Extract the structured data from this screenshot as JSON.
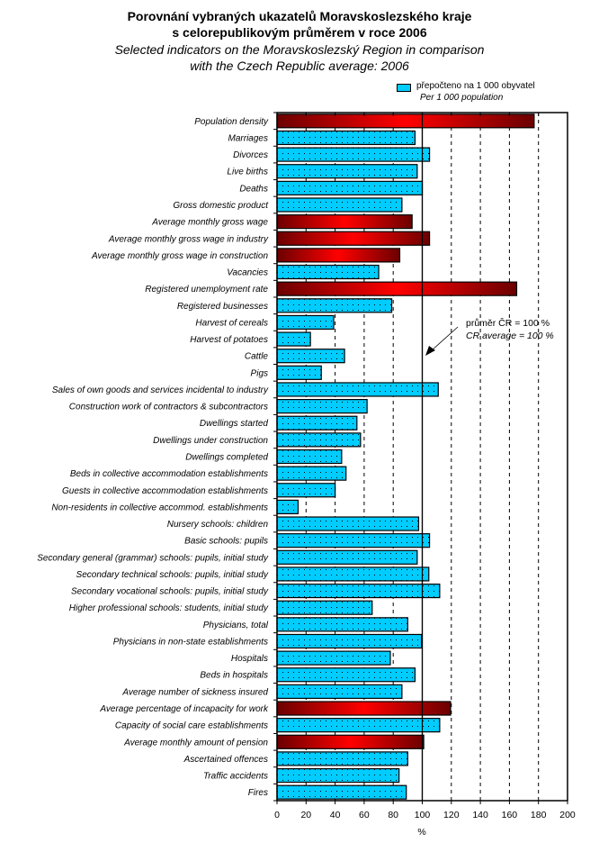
{
  "chart_data": {
    "type": "bar",
    "orientation": "horizontal",
    "title": "Porovnání vybraných ukazatelů Moravskoslezského kraje",
    "title_line2": "s celorepublikovým průměrem v roce 2006",
    "subtitle": "Selected indicators on the Moravskoslezský Region in comparison",
    "subtitle_line2": "with the Czech Republic average: 2006",
    "xlabel": "%",
    "ylabel": "",
    "xlim": [
      0,
      200
    ],
    "xticks": [
      "0",
      "20",
      "40",
      "60",
      "80",
      "100",
      "120",
      "140",
      "160",
      "180",
      "200"
    ],
    "grid": "vertical dashed",
    "reference_line": 100,
    "legend": {
      "placement": "top-right",
      "line1": "přepočteno na 1 000 obyvatel",
      "line2": "Per 1 000 population"
    },
    "annotation": {
      "line1": "průměr ČR = 100 %",
      "line2": "CR average = 100 %"
    },
    "colors": {
      "per_1000": "#00ccff",
      "other_dark": "#6b0000",
      "other_light": "#ff0000"
    },
    "categories": [
      "Population density",
      "Marriages",
      "Divorces",
      "Live births",
      "Deaths",
      "Gross domestic product",
      "Average monthly gross wage",
      "Average monthly gross wage in industry",
      "Average monthly gross wage in construction",
      "Vacancies",
      "Registered unemployment rate",
      "Registered businesses",
      "Harvest of cereals",
      "Harvest of potatoes",
      "Cattle",
      "Pigs",
      "Sales of own goods and services incidental to industry",
      "Construction work of contractors & subcontractors",
      "Dwellings started",
      "Dwellings under construction",
      "Dwellings completed",
      "Beds in collective accommodation establishments",
      "Guests in collective accommodation establishments",
      "Non-residents in collective accommod. establishments",
      "Nursery schools: children",
      "Basic schools: pupils",
      "Secondary general (grammar) schools: pupils, initial study",
      "Secondary technical schools: pupils, initial study",
      "Secondary vocational schools: pupils, initial study",
      "Higher professional schools: students, initial study",
      "Physicians, total",
      "Physicians in non-state establishments",
      "Hospitals",
      "Beds in hospitals",
      "Average number of sickness insured",
      "Average percentage of incapacity for work",
      "Capacity of social care establishments",
      "Average monthly amount of pension",
      "Ascertained offences",
      "Traffic accidents",
      "Fires"
    ],
    "values": [
      177,
      95,
      105,
      96.5,
      100,
      86,
      93,
      105,
      84.5,
      70,
      165,
      79,
      39,
      23,
      46.5,
      30.5,
      111,
      62,
      55,
      57.5,
      44.5,
      47.5,
      40,
      14.5,
      97.5,
      105,
      96.5,
      104.5,
      112,
      65.5,
      90,
      99.5,
      78,
      95,
      86,
      119.5,
      112,
      101,
      90,
      84,
      89
    ],
    "series_type": [
      "other",
      "per_1000",
      "per_1000",
      "per_1000",
      "per_1000",
      "per_1000",
      "other",
      "other",
      "other",
      "per_1000",
      "other",
      "per_1000",
      "per_1000",
      "per_1000",
      "per_1000",
      "per_1000",
      "per_1000",
      "per_1000",
      "per_1000",
      "per_1000",
      "per_1000",
      "per_1000",
      "per_1000",
      "per_1000",
      "per_1000",
      "per_1000",
      "per_1000",
      "per_1000",
      "per_1000",
      "per_1000",
      "per_1000",
      "per_1000",
      "per_1000",
      "per_1000",
      "per_1000",
      "other",
      "per_1000",
      "other",
      "per_1000",
      "per_1000",
      "per_1000"
    ]
  }
}
